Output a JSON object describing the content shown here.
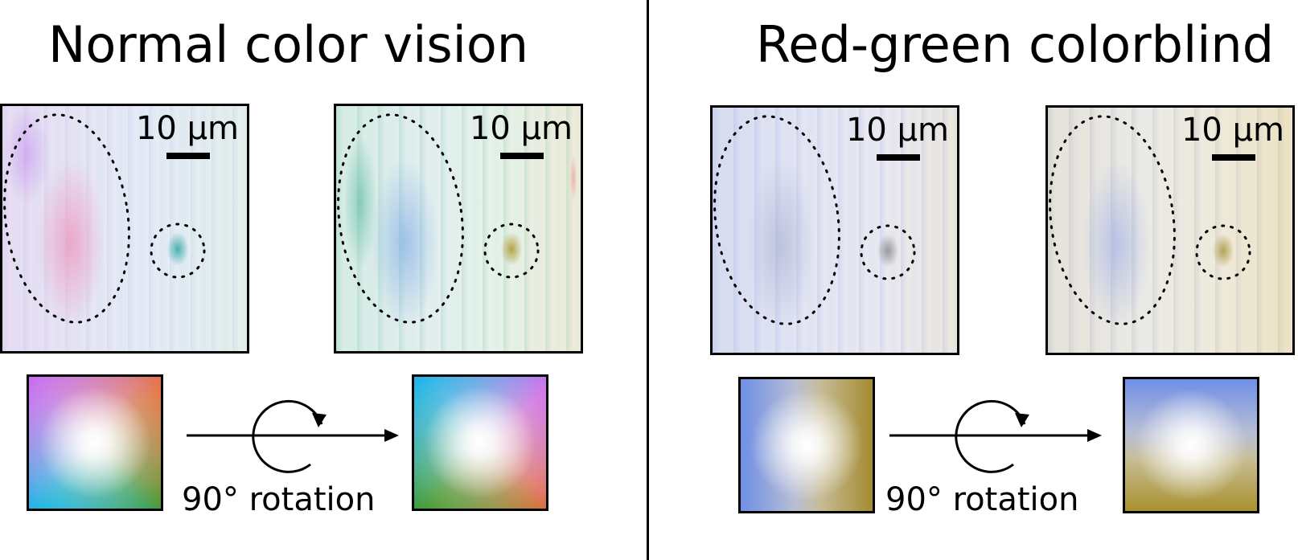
{
  "panels": {
    "normal": {
      "title": "Normal color vision",
      "scale_left": "10 µm",
      "scale_right": "10 µm",
      "rotation_label": "90° rotation"
    },
    "colorblind": {
      "title": "Red-green colorblind",
      "scale_left": "10 µm",
      "scale_right": "10 µm",
      "rotation_label": "90° rotation"
    }
  },
  "colors": {
    "divider": "#000000",
    "normal_wheel_corners": [
      "#c86bf0",
      "#e8703a",
      "#12b8e8",
      "#3c9a2a"
    ],
    "normal_wheel_rotated_corners": [
      "#19b4e8",
      "#d46cef",
      "#3c9a2a",
      "#e86a30"
    ],
    "colorblind_wheel_corners": [
      "#6f8fe6",
      "#a48b2f",
      "#6b8fe6",
      "#9c8a2e"
    ],
    "colorblind_wheel_rotated_corners": [
      "#6f8fe6",
      "#6f8fe6",
      "#a8912d",
      "#a8912d"
    ]
  }
}
